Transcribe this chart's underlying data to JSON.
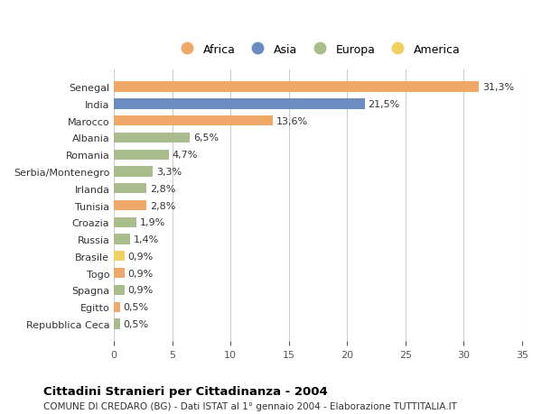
{
  "categories": [
    "Repubblica Ceca",
    "Egitto",
    "Spagna",
    "Togo",
    "Brasile",
    "Russia",
    "Croazia",
    "Tunisia",
    "Irlanda",
    "Serbia/Montenegro",
    "Romania",
    "Albania",
    "Marocco",
    "India",
    "Senegal"
  ],
  "values": [
    0.5,
    0.5,
    0.9,
    0.9,
    0.9,
    1.4,
    1.9,
    2.8,
    2.8,
    3.3,
    4.7,
    6.5,
    13.6,
    21.5,
    31.3
  ],
  "labels": [
    "0,5%",
    "0,5%",
    "0,9%",
    "0,9%",
    "0,9%",
    "1,4%",
    "1,9%",
    "2,8%",
    "2,8%",
    "3,3%",
    "4,7%",
    "6,5%",
    "13,6%",
    "21,5%",
    "31,3%"
  ],
  "continent": [
    "Europa",
    "Africa",
    "Europa",
    "Africa",
    "America",
    "Europa",
    "Europa",
    "Africa",
    "Europa",
    "Europa",
    "Europa",
    "Europa",
    "Africa",
    "Asia",
    "Africa"
  ],
  "colors": {
    "Africa": "#F0A868",
    "Asia": "#6B8CBE",
    "Europa": "#A8BC8C",
    "America": "#F0D060"
  },
  "legend_order": [
    "Africa",
    "Asia",
    "Europa",
    "America"
  ],
  "title_bold": "Cittadini Stranieri per Cittadinanza - 2004",
  "subtitle": "COMUNE DI CREDARO (BG) - Dati ISTAT al 1° gennaio 2004 - Elaborazione TUTTITALIA.IT",
  "xlim": [
    0,
    35
  ],
  "xticks": [
    0,
    5,
    10,
    15,
    20,
    25,
    30,
    35
  ],
  "background_color": "#ffffff",
  "grid_color": "#cccccc"
}
